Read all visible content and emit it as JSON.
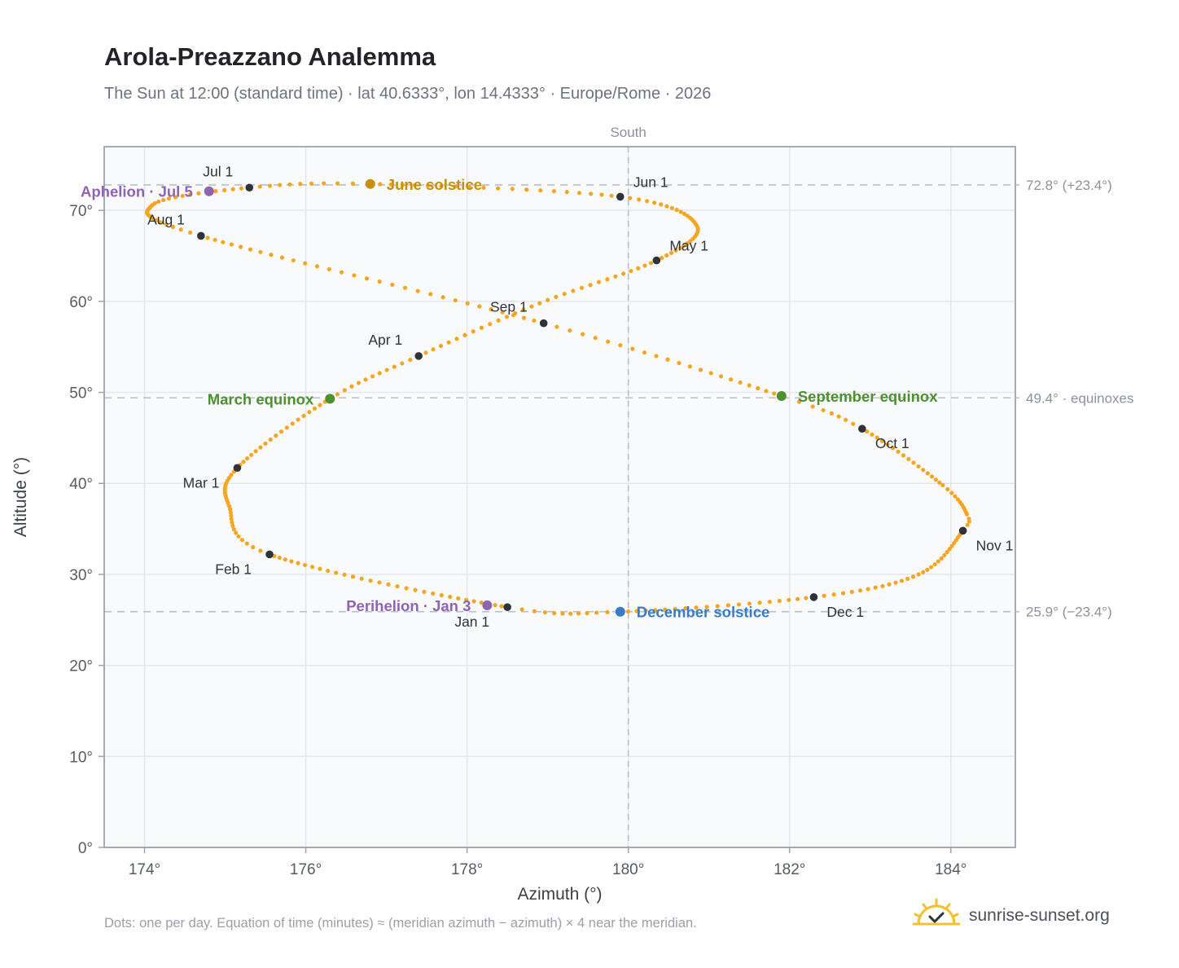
{
  "header": {
    "title": "Arola-Preazzano Analemma",
    "subtitle": "The Sun at 12:00 (standard time) · lat 40.6333°, lon 14.4333° · Europe/Rome · 2026"
  },
  "footer": {
    "note": "Dots: one per day. Equation of time (minutes) ≈ (meridian azimuth − azimuth) × 4 near the meridian.",
    "brand": "sunrise-sunset.org"
  },
  "colors": {
    "curve": "#f5a623",
    "month_marker": "#2f3338",
    "solstice_june": "#c8900a",
    "solstice_december": "#3a7cc4",
    "equinox": "#4e8f2f",
    "apsis": "#8e63b0",
    "reference_line": "#b8c0cc",
    "plot_background": "#f8fafc"
  },
  "chart_data": {
    "type": "scatter",
    "title": "Arola-Preazzano Analemma",
    "xlabel": "Azimuth (°)",
    "ylabel": "Altitude (°)",
    "xlim": [
      173.5,
      184.8
    ],
    "ylim": [
      0,
      77
    ],
    "x_ticks": [
      174,
      176,
      178,
      180,
      182,
      184
    ],
    "y_ticks": [
      0,
      10,
      20,
      30,
      40,
      50,
      60,
      70
    ],
    "x_tick_labels": [
      "174°",
      "176°",
      "178°",
      "180°",
      "182°",
      "184°"
    ],
    "y_tick_labels": [
      "0°",
      "10°",
      "20°",
      "30°",
      "40°",
      "50°",
      "60°",
      "70°"
    ],
    "grid": true,
    "meridian": {
      "azimuth": 180,
      "label": "South"
    },
    "reference_lines": [
      {
        "altitude": 72.8,
        "label": "72.8° (+23.4°)"
      },
      {
        "altitude": 49.4,
        "label": "49.4° · equinoxes"
      },
      {
        "altitude": 25.9,
        "label": "25.9° (−23.4°)"
      }
    ],
    "anchor_points": [
      {
        "day": 0,
        "az": 178.5,
        "alt": 26.4
      },
      {
        "day": 31,
        "az": 175.55,
        "alt": 32.2
      },
      {
        "day": 45,
        "az": 175.05,
        "alt": 37.5
      },
      {
        "day": 59,
        "az": 175.15,
        "alt": 41.7
      },
      {
        "day": 78,
        "az": 176.3,
        "alt": 49.3
      },
      {
        "day": 90,
        "az": 177.4,
        "alt": 54.0
      },
      {
        "day": 105,
        "az": 178.9,
        "alt": 59.8
      },
      {
        "day": 120,
        "az": 180.35,
        "alt": 64.5
      },
      {
        "day": 135,
        "az": 180.85,
        "alt": 68.3
      },
      {
        "day": 151,
        "az": 179.9,
        "alt": 71.5
      },
      {
        "day": 171,
        "az": 176.8,
        "alt": 72.9
      },
      {
        "day": 181,
        "az": 175.3,
        "alt": 72.5
      },
      {
        "day": 195,
        "az": 174.1,
        "alt": 70.6
      },
      {
        "day": 212,
        "az": 174.7,
        "alt": 67.2
      },
      {
        "day": 243,
        "az": 178.95,
        "alt": 57.6
      },
      {
        "day": 265,
        "az": 181.9,
        "alt": 49.6
      },
      {
        "day": 273,
        "az": 182.9,
        "alt": 46.0
      },
      {
        "day": 290,
        "az": 183.9,
        "alt": 39.8
      },
      {
        "day": 300,
        "az": 184.2,
        "alt": 36.6
      },
      {
        "day": 304,
        "az": 184.15,
        "alt": 34.8
      },
      {
        "day": 320,
        "az": 183.6,
        "alt": 30.0
      },
      {
        "day": 334,
        "az": 182.3,
        "alt": 27.5
      },
      {
        "day": 354,
        "az": 179.9,
        "alt": 25.9
      },
      {
        "day": 365,
        "az": 178.5,
        "alt": 26.4
      }
    ],
    "month_markers": [
      {
        "label": "Jan 1",
        "az": 178.5,
        "alt": 26.4,
        "pos": "below-left"
      },
      {
        "label": "Feb 1",
        "az": 175.55,
        "alt": 32.2,
        "pos": "below-left"
      },
      {
        "label": "Mar 1",
        "az": 175.15,
        "alt": 41.7,
        "pos": "below-left"
      },
      {
        "label": "Apr 1",
        "az": 177.4,
        "alt": 54.0,
        "pos": "above-left"
      },
      {
        "label": "May 1",
        "az": 180.35,
        "alt": 64.5,
        "pos": "above-right"
      },
      {
        "label": "Jun 1",
        "az": 179.9,
        "alt": 71.5,
        "pos": "above-right"
      },
      {
        "label": "Jul 1",
        "az": 175.3,
        "alt": 72.5,
        "pos": "above-left"
      },
      {
        "label": "Aug 1",
        "az": 174.7,
        "alt": 67.2,
        "pos": "above-left"
      },
      {
        "label": "Sep 1",
        "az": 178.95,
        "alt": 57.6,
        "pos": "above-left"
      },
      {
        "label": "Oct 1",
        "az": 182.9,
        "alt": 46.0,
        "pos": "below-right"
      },
      {
        "label": "Nov 1",
        "az": 184.15,
        "alt": 34.8,
        "pos": "below-right"
      },
      {
        "label": "Dec 1",
        "az": 182.3,
        "alt": 27.5,
        "pos": "below-right"
      }
    ],
    "events": [
      {
        "label": "June solstice",
        "az": 176.8,
        "alt": 72.9,
        "side": "right",
        "color": "#c8900a"
      },
      {
        "label": "December solstice",
        "az": 179.9,
        "alt": 25.9,
        "side": "right",
        "color": "#3a7cc4"
      },
      {
        "label": "March equinox",
        "az": 176.3,
        "alt": 49.3,
        "side": "left",
        "color": "#4e8f2f"
      },
      {
        "label": "September equinox",
        "az": 181.9,
        "alt": 49.6,
        "side": "right",
        "color": "#4e8f2f"
      },
      {
        "label": "Aphelion · Jul 5",
        "az": 174.8,
        "alt": 72.1,
        "side": "left",
        "color": "#8e63b0"
      },
      {
        "label": "Perihelion · Jan 3",
        "az": 178.25,
        "alt": 26.6,
        "side": "left",
        "color": "#8e63b0"
      }
    ]
  }
}
